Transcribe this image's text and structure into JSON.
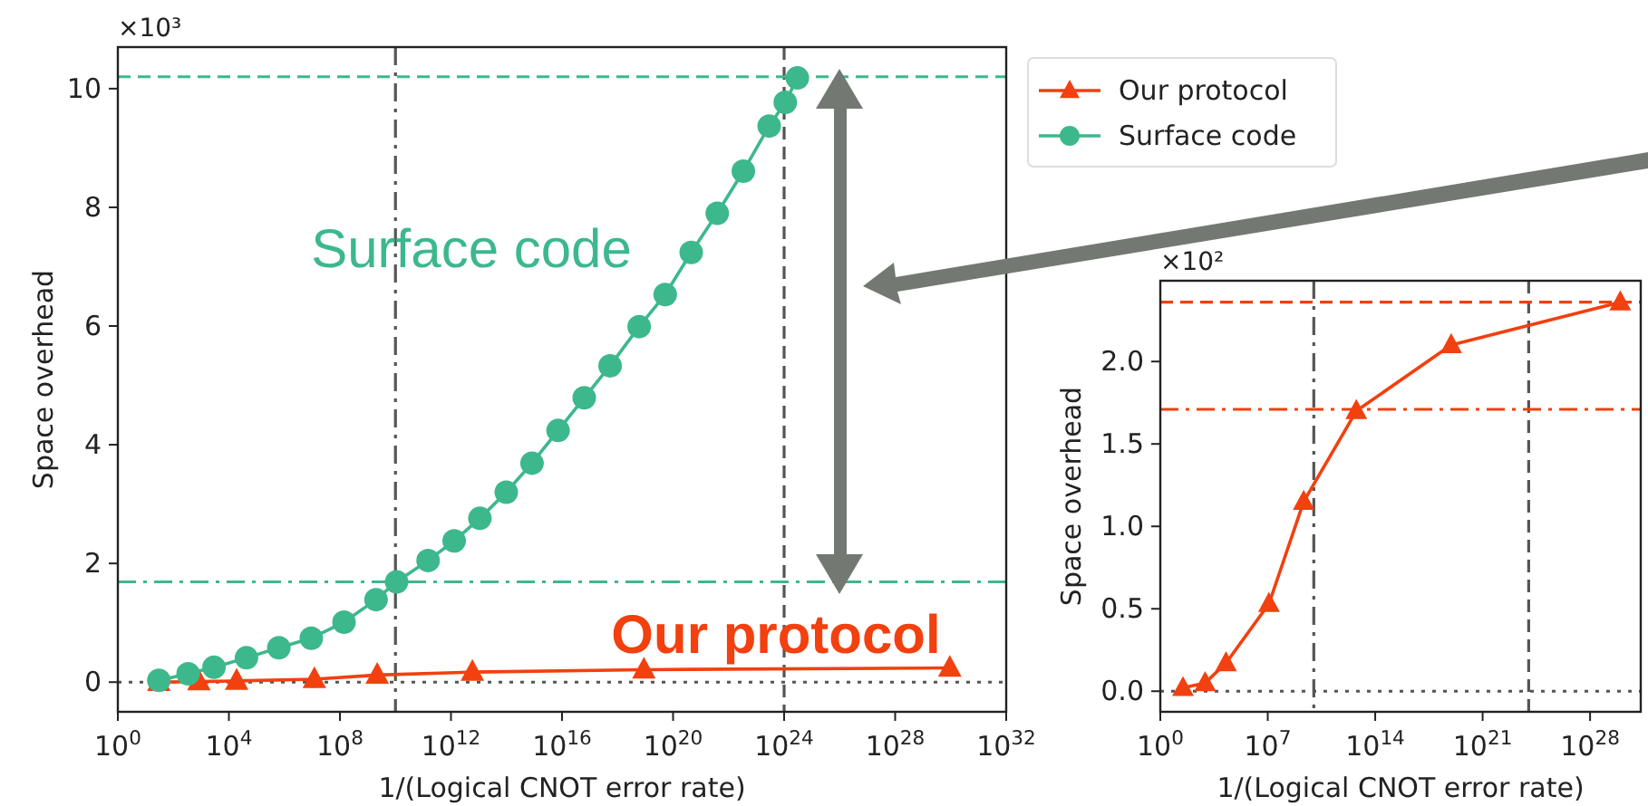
{
  "chart_data": [
    {
      "type": "line",
      "xlabel": "1/(Logical CNOT error rate)",
      "ylabel": "Space overhead",
      "log": "x",
      "xlim": [
        1,
        1e+32
      ],
      "xticks": [
        {
          "value": 1,
          "label": "10$^{0}$"
        },
        {
          "value": 10000.0,
          "label": "10$^{4}$"
        },
        {
          "value": 100000000.0,
          "label": "10$^{8}$"
        },
        {
          "value": 1000000000000.0,
          "label": "10$^{12}$"
        },
        {
          "value": 1e+16,
          "label": "10$^{16}$"
        },
        {
          "value": 1e+20,
          "label": "10$^{20}$"
        },
        {
          "value": 1e+24,
          "label": "10$^{24}$"
        },
        {
          "value": 1e+28,
          "label": "10$^{28}$"
        },
        {
          "value": 1e+32,
          "label": "10$^{32}$"
        }
      ],
      "ylim": [
        -0.5,
        10.7
      ],
      "yticks": [
        0,
        2,
        4,
        6,
        8,
        10
      ],
      "grid": false,
      "legend": "top right",
      "series": [
        {
          "name": "Our protocol",
          "color": "#f2400f",
          "marker": "triangle",
          "x": [
            30,
            830,
            19000,
            12000000.0,
            2200000000.0,
            5900000000000.0,
            8.9e+18,
            9.3e+29
          ],
          "values": [
            0.0,
            0.01,
            0.02,
            0.05,
            0.12,
            0.17,
            0.21,
            0.24
          ]
        },
        {
          "name": "Surface code",
          "color": "#3cb88c",
          "marker": "circle",
          "x": [
            30,
            340,
            2900,
            43000,
            630000,
            9300000.0,
            140000000.0,
            2000000000.0,
            11000000000.0,
            150000000000.0,
            1300000000000.0,
            11000000000000.0,
            98000000000000.0,
            830000000000000.0,
            7200000000000000.0,
            6.3e+16,
            5.4e+17,
            6e+18,
            5.2e+19,
            4.5e+20,
            3.9e+21,
            3.4e+22,
            2.9e+23,
            1.1e+24,
            3e+24
          ],
          "values": [
            0.03,
            0.14,
            0.25,
            0.41,
            0.58,
            0.74,
            1.01,
            1.39,
            1.69,
            2.05,
            2.38,
            2.76,
            3.2,
            3.69,
            4.24,
            4.79,
            5.33,
            5.99,
            6.53,
            7.24,
            7.9,
            8.61,
            9.37,
            9.77,
            10.18
          ]
        }
      ],
      "ref_lines": [
        {
          "axis": "x",
          "value": 10000000000.0,
          "line_style": "dashdot",
          "color": "#555555"
        },
        {
          "axis": "x",
          "value": 1e+24,
          "line_style": "dashed",
          "color": "#555555"
        },
        {
          "axis": "y",
          "value": 10.2,
          "line_style": "dashed",
          "color": "#3cb88c"
        },
        {
          "axis": "y",
          "value": 1.69,
          "line_style": "dashdot",
          "color": "#3cb88c"
        },
        {
          "axis": "y",
          "value": 0,
          "line_style": "dotted",
          "color": "#555555"
        }
      ],
      "annotations": [
        "×10³",
        "Our protocol",
        "Surface code"
      ]
    },
    {
      "type": "line",
      "xlabel": "1/(Logical CNOT error rate)",
      "ylabel": "Space overhead",
      "log": "x",
      "xlim": [
        1,
        2e+31
      ],
      "xticks": [
        {
          "value": 1,
          "label": "10$^{0}$"
        },
        {
          "value": 10000000.0,
          "label": "10$^{7}$"
        },
        {
          "value": 100000000000000.0,
          "label": "10$^{14}$"
        },
        {
          "value": 1e+21,
          "label": "10$^{21}$"
        },
        {
          "value": 1e+28,
          "label": "10$^{28}$"
        }
      ],
      "ylim": [
        -0.125,
        2.49
      ],
      "yticks": [
        {
          "value": 0,
          "label": "0.0"
        },
        {
          "value": 0.5,
          "label": "0.5"
        },
        {
          "value": 1,
          "label": "1.0"
        },
        {
          "value": 1.5,
          "label": "1.5"
        },
        {
          "value": 2,
          "label": "2.0"
        }
      ],
      "grid": false,
      "series": [
        {
          "color": "#f2400f",
          "marker": "triangle",
          "x": [
            30,
            830,
            19000,
            12000000.0,
            2200000000.0,
            5900000000000.0,
            8.9e+18,
            9.3e+29
          ],
          "values": [
            0.02,
            0.05,
            0.17,
            0.53,
            1.15,
            1.7,
            2.1,
            2.36
          ]
        }
      ],
      "ref_lines": [
        {
          "axis": "x",
          "value": 10000000000.0,
          "line_style": "dashdot",
          "color": "#555555"
        },
        {
          "axis": "x",
          "value": 1e+24,
          "line_style": "dashed",
          "color": "#555555"
        },
        {
          "axis": "y",
          "value": 2.36,
          "line_style": "dashed",
          "color": "#f2400f"
        },
        {
          "axis": "y",
          "value": 1.71,
          "line_style": "dashdot",
          "color": "#f2400f"
        },
        {
          "axis": "y",
          "value": 0,
          "line_style": "dotted",
          "color": "#555555"
        }
      ],
      "annotations": [
        "×10²"
      ]
    }
  ]
}
